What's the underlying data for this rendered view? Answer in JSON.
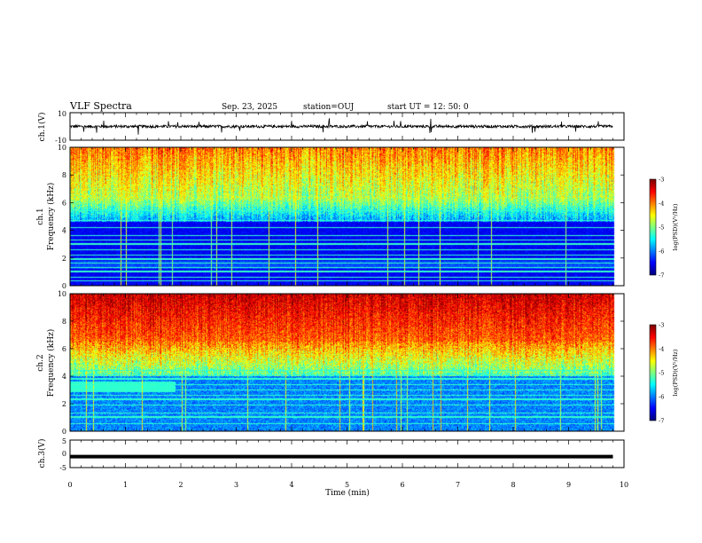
{
  "header": {
    "title": "VLF Spectra",
    "date": "Sep. 23, 2025",
    "station": "station=OUJ",
    "start": "start  UT  =   12: 50: 0"
  },
  "chart_data": [
    {
      "type": "line",
      "ylabel": "ch.1(V)",
      "ylim": [
        -10,
        10
      ],
      "y_ticks": [
        "10",
        "-10"
      ],
      "description_values": {
        "baseline": 0,
        "noise_amplitude": 2,
        "spike_max": 6
      }
    },
    {
      "type": "heatmap",
      "ylabel_top": "ch.1",
      "ylabel": "Frequency (kHz)",
      "xlim": [
        0,
        10
      ],
      "ylim": [
        0,
        10
      ],
      "y_ticks": [
        "0",
        "2",
        "4",
        "6",
        "8",
        "10"
      ],
      "colorbar": {
        "label": "log(PSD)(V²/Hz)",
        "range": [
          -7,
          -3
        ],
        "ticks": [
          "-3",
          "-4",
          "-5",
          "-6",
          "-7"
        ]
      },
      "data_end_min": 9.8
    },
    {
      "type": "heatmap",
      "ylabel_top": "ch.2",
      "ylabel": "Frequency (kHz)",
      "xlim": [
        0,
        10
      ],
      "ylim": [
        0,
        10
      ],
      "y_ticks": [
        "0",
        "2",
        "4",
        "6",
        "8",
        "10"
      ],
      "colorbar": {
        "label": "log(PSD)(V²/Hz)",
        "range": [
          -7,
          -3
        ],
        "ticks": [
          "-3",
          "-4",
          "-5",
          "-6",
          "-7"
        ]
      },
      "data_end_min": 9.8
    },
    {
      "type": "line",
      "ylabel": "ch.3(V)",
      "ylim": [
        -5,
        5
      ],
      "y_ticks": [
        "5",
        "0",
        "-5"
      ],
      "values": {
        "level": -1,
        "data_end_min": 9.8
      }
    }
  ],
  "xaxis": {
    "label": "Time (min)",
    "xlim": [
      0,
      10
    ],
    "ticks": [
      "0",
      "1",
      "2",
      "3",
      "4",
      "5",
      "6",
      "7",
      "8",
      "9",
      "10"
    ]
  }
}
